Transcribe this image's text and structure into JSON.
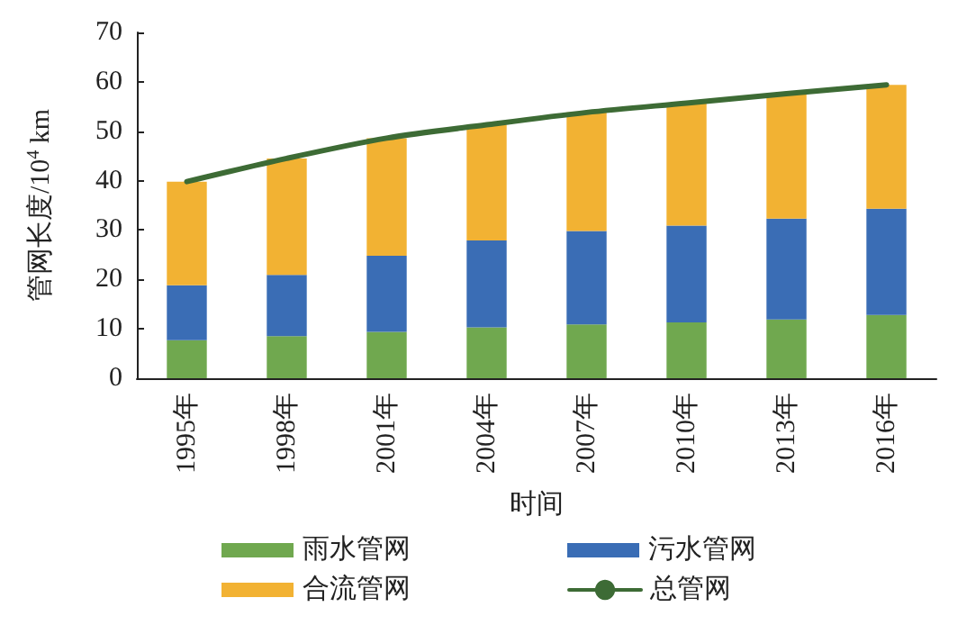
{
  "chart_data": {
    "type": "bar",
    "stacked": true,
    "xlabel": "时间",
    "ylabel": "管网长度/10$^{4}$ km",
    "categories": [
      "1995年",
      "1998年",
      "2001年",
      "2004年",
      "2007年",
      "2010年",
      "2013年",
      "2016年"
    ],
    "series": [
      {
        "name": "雨水管网",
        "color": "#70a84f",
        "values": [
          7.7,
          8.5,
          9.4,
          10.3,
          10.9,
          11.3,
          11.9,
          12.8
        ]
      },
      {
        "name": "污水管网",
        "color": "#3a6db5",
        "values": [
          11.1,
          12.4,
          15.4,
          17.6,
          18.9,
          19.6,
          20.4,
          21.5
        ]
      },
      {
        "name": "合流管网",
        "color": "#f2b233",
        "values": [
          21.0,
          23.6,
          23.8,
          23.4,
          24.0,
          24.8,
          25.3,
          25.1
        ]
      },
      {
        "name": "总管网",
        "type": "line",
        "color": "#3d6b35",
        "values": [
          39.8,
          44.5,
          48.6,
          51.3,
          53.8,
          55.7,
          57.6,
          59.4
        ]
      }
    ],
    "ylim": [
      0,
      70
    ],
    "yticks": [
      0,
      10,
      20,
      30,
      40,
      50,
      60,
      70
    ],
    "grid": false,
    "legend": "bottom",
    "marker": "none"
  }
}
